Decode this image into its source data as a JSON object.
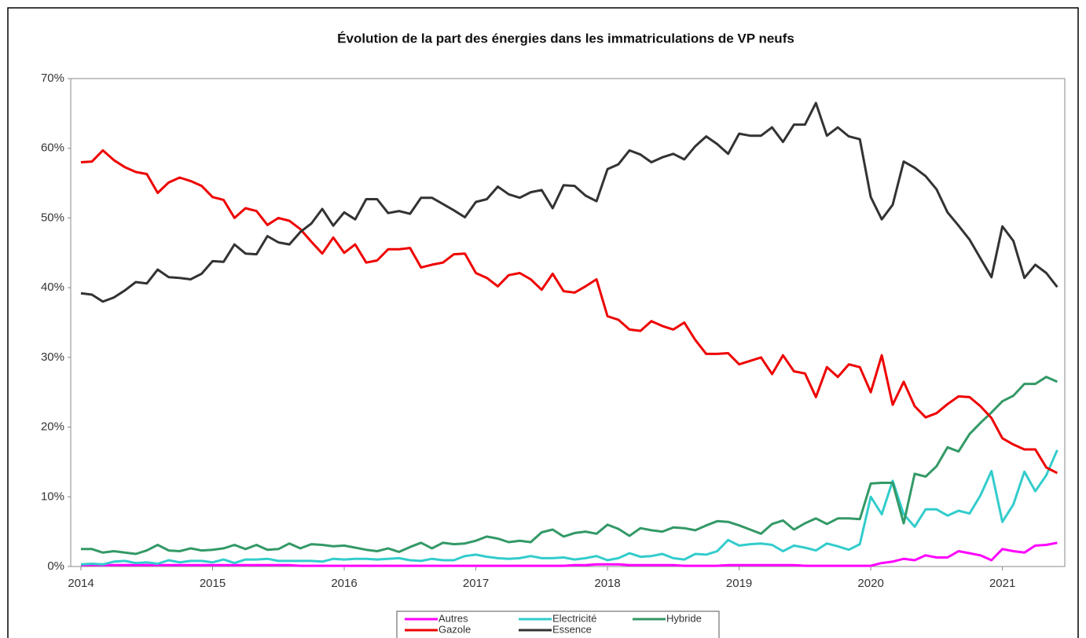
{
  "chart_data": {
    "type": "line",
    "title": "Évolution de la part des énergies dans les immatriculations de VP neufs",
    "categories": [
      "2014",
      null,
      null,
      null,
      null,
      null,
      null,
      null,
      null,
      null,
      null,
      null,
      "2015",
      null,
      null,
      null,
      null,
      null,
      null,
      null,
      null,
      null,
      null,
      null,
      "2016",
      null,
      null,
      null,
      null,
      null,
      null,
      null,
      null,
      null,
      null,
      null,
      "2017",
      null,
      null,
      null,
      null,
      null,
      null,
      null,
      null,
      null,
      null,
      null,
      "2018",
      null,
      null,
      null,
      null,
      null,
      null,
      null,
      null,
      null,
      null,
      null,
      "2019",
      null,
      null,
      null,
      null,
      null,
      null,
      null,
      null,
      null,
      null,
      null,
      "2020",
      null,
      null,
      null,
      null,
      null,
      null,
      null,
      null,
      null,
      null,
      null,
      "2021",
      null,
      null,
      null,
      null,
      null
    ],
    "series": [
      {
        "name": "Autres",
        "color": "#ff00ff",
        "values": [
          0.2,
          0.2,
          0.2,
          0.2,
          0.2,
          0.2,
          0.2,
          0.2,
          0.2,
          0.2,
          0.2,
          0.2,
          0.2,
          0.2,
          0.2,
          0.2,
          0.2,
          0.2,
          0.2,
          0.2,
          0.1,
          0.1,
          0.1,
          0.1,
          0.1,
          0.1,
          0.1,
          0.1,
          0.1,
          0.1,
          0.1,
          0.1,
          0.1,
          0.1,
          0.1,
          0.1,
          0.1,
          0.1,
          0.1,
          0.1,
          0.1,
          0.1,
          0.1,
          0.1,
          0.1,
          0.2,
          0.2,
          0.3,
          0.3,
          0.3,
          0.2,
          0.2,
          0.2,
          0.2,
          0.2,
          0.1,
          0.1,
          0.1,
          0.1,
          0.2,
          0.2,
          0.2,
          0.2,
          0.2,
          0.2,
          0.2,
          0.1,
          0.1,
          0.1,
          0.1,
          0.1,
          0.1,
          0.1,
          0.5,
          0.7,
          1.1,
          0.9,
          1.6,
          1.3,
          1.3,
          2.2,
          1.9,
          1.6,
          0.9,
          2.5,
          2.2,
          2.0,
          3.0,
          3.1,
          3.4
        ]
      },
      {
        "name": "Electricité",
        "color": "#33cccc",
        "values": [
          0.3,
          0.4,
          0.3,
          0.7,
          0.8,
          0.5,
          0.6,
          0.4,
          0.9,
          0.6,
          0.8,
          0.8,
          0.6,
          1.0,
          0.5,
          1.0,
          1.0,
          1.1,
          0.8,
          0.8,
          0.8,
          0.8,
          0.7,
          1.1,
          1.0,
          1.1,
          1.1,
          1.0,
          1.1,
          1.2,
          0.9,
          0.8,
          1.1,
          0.9,
          0.9,
          1.5,
          1.7,
          1.4,
          1.2,
          1.1,
          1.2,
          1.5,
          1.2,
          1.2,
          1.3,
          1.0,
          1.2,
          1.5,
          0.9,
          1.2,
          1.9,
          1.4,
          1.5,
          1.8,
          1.2,
          1.0,
          1.8,
          1.7,
          2.2,
          3.8,
          3.0,
          3.2,
          3.3,
          3.1,
          2.2,
          3.0,
          2.7,
          2.3,
          3.3,
          2.9,
          2.4,
          3.2,
          10.0,
          7.5,
          12.3,
          7.5,
          5.7,
          8.2,
          8.2,
          7.3,
          8.0,
          7.6,
          10.2,
          13.7,
          6.4,
          8.9,
          13.6,
          10.8,
          13.1,
          16.7
        ]
      },
      {
        "name": "Hybride",
        "color": "#339966",
        "values": [
          2.5,
          2.5,
          2.0,
          2.2,
          2.0,
          1.8,
          2.3,
          3.1,
          2.3,
          2.2,
          2.6,
          2.3,
          2.4,
          2.6,
          3.1,
          2.5,
          3.1,
          2.4,
          2.5,
          3.3,
          2.6,
          3.2,
          3.1,
          2.9,
          3.0,
          2.7,
          2.4,
          2.2,
          2.6,
          2.1,
          2.8,
          3.4,
          2.6,
          3.4,
          3.2,
          3.3,
          3.7,
          4.3,
          4.0,
          3.5,
          3.7,
          3.5,
          4.9,
          5.3,
          4.3,
          4.8,
          5.0,
          4.7,
          6.0,
          5.4,
          4.4,
          5.5,
          5.2,
          5.0,
          5.6,
          5.5,
          5.2,
          5.9,
          6.5,
          6.4,
          5.9,
          5.3,
          4.7,
          6.1,
          6.6,
          5.3,
          6.2,
          6.9,
          6.1,
          6.9,
          6.9,
          6.8,
          11.9,
          12.0,
          12.0,
          6.2,
          13.3,
          12.9,
          14.4,
          17.1,
          16.5,
          19.0,
          20.6,
          22.1,
          23.7,
          24.5,
          26.2,
          26.2,
          27.2,
          26.5
        ]
      },
      {
        "name": "Gazole",
        "color": "#ee0000",
        "values": [
          58.0,
          58.1,
          59.7,
          58.3,
          57.3,
          56.6,
          56.3,
          53.6,
          55.1,
          55.8,
          55.3,
          54.6,
          53.0,
          52.6,
          50.0,
          51.4,
          51.0,
          49.0,
          50.0,
          49.6,
          48.4,
          46.6,
          44.9,
          47.2,
          45.0,
          46.2,
          43.6,
          43.9,
          45.5,
          45.5,
          45.7,
          42.9,
          43.3,
          43.6,
          44.8,
          44.9,
          42.1,
          41.4,
          40.2,
          41.8,
          42.1,
          41.2,
          39.7,
          42.0,
          39.5,
          39.3,
          40.2,
          41.2,
          35.9,
          35.4,
          34.0,
          33.8,
          35.2,
          34.5,
          34.0,
          35.0,
          32.5,
          30.5,
          30.5,
          30.6,
          29.0,
          29.5,
          30.0,
          27.6,
          30.3,
          28.0,
          27.7,
          24.3,
          28.6,
          27.2,
          29.0,
          28.6,
          25.0,
          30.3,
          23.2,
          26.5,
          23.0,
          21.4,
          22.0,
          23.3,
          24.4,
          24.3,
          23.0,
          21.3,
          18.4,
          17.5,
          16.8,
          16.8,
          14.2,
          13.4
        ]
      },
      {
        "name": "Essence",
        "color": "#333333",
        "values": [
          39.2,
          39.0,
          38.0,
          38.6,
          39.6,
          40.8,
          40.6,
          42.6,
          41.5,
          41.4,
          41.2,
          42.0,
          43.8,
          43.7,
          46.2,
          44.9,
          44.8,
          47.4,
          46.5,
          46.2,
          48.0,
          49.2,
          51.3,
          48.9,
          50.8,
          49.8,
          52.7,
          52.7,
          50.7,
          51.0,
          50.6,
          52.9,
          52.9,
          52.0,
          51.1,
          50.1,
          52.3,
          52.7,
          54.5,
          53.4,
          52.9,
          53.7,
          54.0,
          51.4,
          54.7,
          54.6,
          53.2,
          52.4,
          57.0,
          57.7,
          59.7,
          59.1,
          58.0,
          58.7,
          59.2,
          58.4,
          60.3,
          61.7,
          60.6,
          59.2,
          62.1,
          61.8,
          61.8,
          63.0,
          60.9,
          63.4,
          63.4,
          66.5,
          61.8,
          63.0,
          61.7,
          61.3,
          53.0,
          49.8,
          51.9,
          58.1,
          57.2,
          56.0,
          54.1,
          50.8,
          48.9,
          46.9,
          44.2,
          41.5,
          48.8,
          46.7,
          41.4,
          43.3,
          42.1,
          40.1
        ]
      }
    ],
    "ylim": [
      0,
      70
    ],
    "yticks": [
      {
        "value": 0,
        "label": "0%"
      },
      {
        "value": 10,
        "label": "10%"
      },
      {
        "value": 20,
        "label": "20%"
      },
      {
        "value": 30,
        "label": "30%"
      },
      {
        "value": 40,
        "label": "40%"
      },
      {
        "value": 50,
        "label": "50%"
      },
      {
        "value": 60,
        "label": "60%"
      },
      {
        "value": 70,
        "label": "70%"
      }
    ],
    "grid": false,
    "legend": "bottom"
  }
}
